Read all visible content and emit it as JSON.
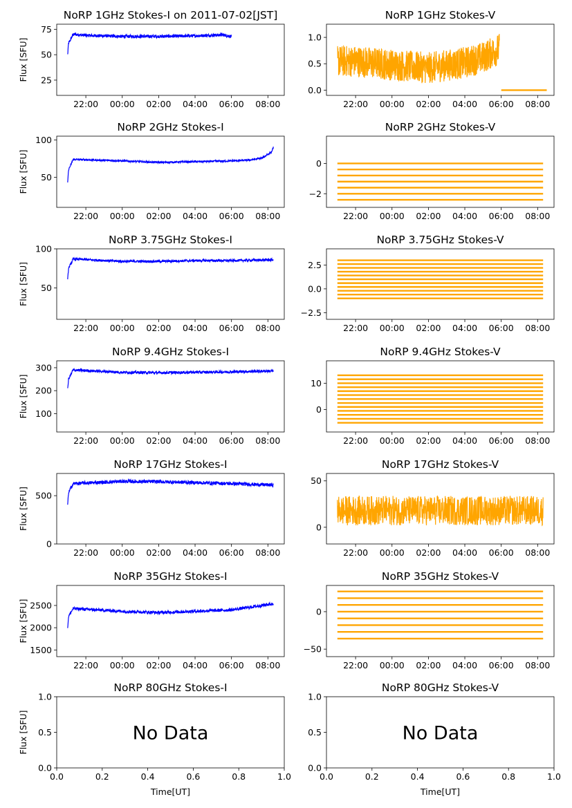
{
  "figure": {
    "ylabel": "Flux [SFU]",
    "xlabel": "Time[UT]",
    "no_data_text": "No Data",
    "colors": {
      "stokes_i": "#0000ff",
      "stokes_v": "#ffa500"
    }
  },
  "chart_data": [
    {
      "type": "scatter",
      "title": "NoRP 1GHz Stokes-I on 2011-07-02[JST]",
      "ylabel": "Flux [SFU]",
      "color": "#0000ff",
      "xticks": [
        "22:00",
        "00:00",
        "02:00",
        "04:00",
        "06:00",
        "08:00"
      ],
      "xlim_hours": [
        20.4,
        32.9
      ],
      "ylim": [
        10,
        80
      ],
      "yticks": [
        25,
        50,
        75
      ],
      "series": [
        {
          "x_hours": [
            21.0,
            21.05,
            21.3,
            22.0,
            24.0,
            26.0,
            28.0,
            29.5,
            30.0
          ],
          "y": [
            50,
            61,
            70,
            69,
            68,
            68,
            68.5,
            69.5,
            68
          ],
          "spread": 1.5
        }
      ]
    },
    {
      "type": "scatter",
      "title": "NoRP 1GHz Stokes-V",
      "color": "#ffa500",
      "xticks": [
        "22:00",
        "00:00",
        "02:00",
        "04:00",
        "06:00",
        "08:00"
      ],
      "xlim_hours": [
        20.4,
        32.9
      ],
      "ylim": [
        -0.1,
        1.25
      ],
      "yticks": [
        "0.0",
        "0.5",
        "1.0"
      ],
      "series": [
        {
          "x_hours": [
            21.0,
            22.0,
            24.0,
            26.0,
            28.0,
            29.0,
            29.9
          ],
          "y": [
            0.55,
            0.55,
            0.48,
            0.42,
            0.52,
            0.62,
            0.78
          ],
          "spread": 0.3
        },
        {
          "x_hours": [
            30.0,
            32.5
          ],
          "y": [
            0.0,
            0.0
          ],
          "spread": 0
        }
      ]
    },
    {
      "type": "scatter",
      "title": "NoRP 2GHz Stokes-I",
      "ylabel": "Flux [SFU]",
      "color": "#0000ff",
      "xticks": [
        "22:00",
        "00:00",
        "02:00",
        "04:00",
        "06:00",
        "08:00"
      ],
      "xlim_hours": [
        20.4,
        32.9
      ],
      "ylim": [
        10,
        105
      ],
      "yticks": [
        50,
        100
      ],
      "series": [
        {
          "x_hours": [
            21.0,
            21.05,
            21.3,
            24.0,
            26.0,
            28.0,
            30.0,
            31.0,
            31.7,
            32.2,
            32.3
          ],
          "y": [
            43,
            60,
            74,
            72,
            70,
            71,
            72,
            73,
            76,
            84,
            90
          ],
          "spread": 1.2
        }
      ]
    },
    {
      "type": "scatter",
      "title": "NoRP 2GHz Stokes-V",
      "color": "#ffa500",
      "xticks": [
        "22:00",
        "00:00",
        "02:00",
        "04:00",
        "06:00",
        "08:00"
      ],
      "xlim_hours": [
        20.4,
        32.9
      ],
      "ylim": [
        -2.9,
        1.8
      ],
      "yticks": [
        "0",
        "−2"
      ],
      "series": [
        {
          "x_hours": [
            21.0,
            32.3
          ],
          "y": [
            -0.9,
            -0.9
          ],
          "levels": [
            0.0,
            -0.4,
            -0.8,
            -1.2,
            -1.6,
            -2.0,
            -2.4
          ],
          "spread": 0
        }
      ]
    },
    {
      "type": "scatter",
      "title": "NoRP 3.75GHz Stokes-I",
      "ylabel": "Flux [SFU]",
      "color": "#0000ff",
      "xticks": [
        "22:00",
        "00:00",
        "02:00",
        "04:00",
        "06:00",
        "08:00"
      ],
      "xlim_hours": [
        20.4,
        32.9
      ],
      "ylim": [
        10,
        100
      ],
      "yticks": [
        50,
        100
      ],
      "series": [
        {
          "x_hours": [
            21.0,
            21.05,
            21.3,
            24.0,
            26.0,
            28.0,
            30.0,
            32.3
          ],
          "y": [
            60,
            75,
            87,
            84,
            84,
            85,
            85,
            86
          ],
          "spread": 1.5
        }
      ]
    },
    {
      "type": "scatter",
      "title": "NoRP 3.75GHz Stokes-V",
      "color": "#ffa500",
      "xticks": [
        "22:00",
        "00:00",
        "02:00",
        "04:00",
        "06:00",
        "08:00"
      ],
      "xlim_hours": [
        20.4,
        32.9
      ],
      "ylim": [
        -3.2,
        4.2
      ],
      "yticks": [
        "2.5",
        "0.0",
        "−2.5"
      ],
      "series": [
        {
          "x_hours": [
            21.0,
            32.3
          ],
          "y": [
            0.9,
            0.9
          ],
          "levels": [
            3.0,
            2.6,
            2.2,
            1.8,
            1.4,
            1.0,
            0.6,
            0.2,
            -0.2,
            -0.6,
            -1.0
          ],
          "spread": 0
        }
      ]
    },
    {
      "type": "scatter",
      "title": "NoRP 9.4GHz Stokes-I",
      "ylabel": "Flux [SFU]",
      "color": "#0000ff",
      "xticks": [
        "22:00",
        "00:00",
        "02:00",
        "04:00",
        "06:00",
        "08:00"
      ],
      "xlim_hours": [
        20.4,
        32.9
      ],
      "ylim": [
        20,
        330
      ],
      "yticks": [
        100,
        200,
        300
      ],
      "series": [
        {
          "x_hours": [
            21.0,
            21.05,
            21.3,
            24.0,
            26.0,
            28.0,
            30.0,
            32.3
          ],
          "y": [
            205,
            250,
            290,
            280,
            278,
            280,
            282,
            286
          ],
          "spread": 6
        }
      ]
    },
    {
      "type": "scatter",
      "title": "NoRP 9.4GHz Stokes-V",
      "color": "#ffa500",
      "xticks": [
        "22:00",
        "00:00",
        "02:00",
        "04:00",
        "06:00",
        "08:00"
      ],
      "xlim_hours": [
        20.4,
        32.9
      ],
      "ylim": [
        -8.5,
        18.5
      ],
      "yticks": [
        "10",
        "0"
      ],
      "series": [
        {
          "x_hours": [
            21.0,
            32.3
          ],
          "y": [
            4,
            4
          ],
          "levels": [
            13,
            11.5,
            10,
            8.5,
            7,
            5.5,
            4,
            2.5,
            1,
            -0.5,
            -2,
            -3.5,
            -5
          ],
          "spread": 0
        }
      ]
    },
    {
      "type": "scatter",
      "title": "NoRP 17GHz Stokes-I",
      "ylabel": "Flux [SFU]",
      "color": "#0000ff",
      "xticks": [
        "22:00",
        "00:00",
        "02:00",
        "04:00",
        "06:00",
        "08:00"
      ],
      "xlim_hours": [
        20.4,
        32.9
      ],
      "ylim": [
        0,
        730
      ],
      "yticks": [
        0,
        500
      ],
      "series": [
        {
          "x_hours": [
            21.0,
            21.05,
            21.3,
            24.0,
            26.0,
            28.0,
            30.0,
            32.3
          ],
          "y": [
            400,
            530,
            625,
            648,
            645,
            635,
            625,
            610
          ],
          "spread": 18
        }
      ]
    },
    {
      "type": "scatter",
      "title": "NoRP 17GHz Stokes-V",
      "color": "#ffa500",
      "xticks": [
        "22:00",
        "00:00",
        "02:00",
        "04:00",
        "06:00",
        "08:00"
      ],
      "xlim_hours": [
        20.4,
        32.9
      ],
      "ylim": [
        -18,
        58
      ],
      "yticks": [
        "50",
        "0"
      ],
      "series": [
        {
          "x_hours": [
            21.0,
            32.3
          ],
          "y": [
            18,
            18
          ],
          "spread": 16
        }
      ]
    },
    {
      "type": "scatter",
      "title": "NoRP 35GHz Stokes-I",
      "ylabel": "Flux [SFU]",
      "color": "#0000ff",
      "xticks": [
        "22:00",
        "00:00",
        "02:00",
        "04:00",
        "06:00",
        "08:00"
      ],
      "xlim_hours": [
        20.4,
        32.9
      ],
      "ylim": [
        1350,
        2950
      ],
      "yticks": [
        1500,
        2000,
        2500
      ],
      "series": [
        {
          "x_hours": [
            21.0,
            21.05,
            21.3,
            24.0,
            26.0,
            28.0,
            30.0,
            31.0,
            32.3
          ],
          "y": [
            2000,
            2250,
            2430,
            2370,
            2340,
            2370,
            2400,
            2460,
            2540
          ],
          "spread": 35
        }
      ]
    },
    {
      "type": "scatter",
      "title": "NoRP 35GHz Stokes-V",
      "color": "#ffa500",
      "xticks": [
        "22:00",
        "00:00",
        "02:00",
        "04:00",
        "06:00",
        "08:00"
      ],
      "xlim_hours": [
        20.4,
        32.9
      ],
      "ylim": [
        -60,
        35
      ],
      "yticks": [
        "0",
        "−50"
      ],
      "series": [
        {
          "x_hours": [
            21.0,
            32.3
          ],
          "y": [
            -5,
            -5
          ],
          "levels": [
            27,
            18,
            9,
            0,
            -9,
            -18,
            -27,
            -36
          ],
          "spread": 0
        }
      ]
    },
    {
      "type": "scatter",
      "title": "NoRP 80GHz Stokes-I",
      "ylabel": "Flux [SFU]",
      "xlabel": "Time[UT]",
      "xlim": [
        0,
        1
      ],
      "ylim": [
        0,
        1
      ],
      "xticks": [
        "0.0",
        "0.2",
        "0.4",
        "0.6",
        "0.8",
        "1.0"
      ],
      "yticks": [
        "0.0",
        "0.5",
        "1.0"
      ],
      "no_data": "No Data",
      "series": []
    },
    {
      "type": "scatter",
      "title": "NoRP 80GHz Stokes-V",
      "xlabel": "Time[UT]",
      "xlim": [
        0,
        1
      ],
      "ylim": [
        0,
        1
      ],
      "xticks": [
        "0.0",
        "0.2",
        "0.4",
        "0.6",
        "0.8",
        "1.0"
      ],
      "yticks": [
        "0.0",
        "0.5",
        "1.0"
      ],
      "no_data": "No Data",
      "series": []
    }
  ]
}
